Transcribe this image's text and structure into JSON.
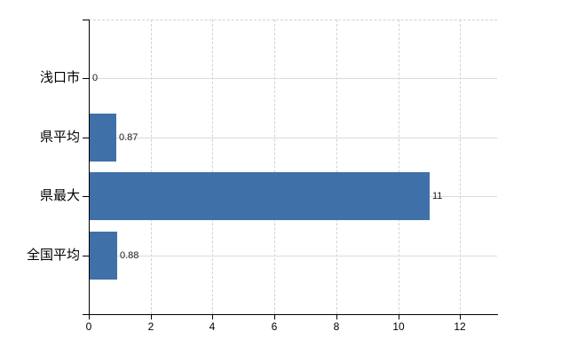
{
  "chart_data": {
    "type": "bar",
    "orientation": "horizontal",
    "title": "",
    "categories": [
      "浅口市",
      "県平均",
      "県最大",
      "全国平均"
    ],
    "values": [
      0,
      0.87,
      11,
      0.88
    ],
    "value_labels": [
      "0",
      "0.87",
      "11",
      "0.88"
    ],
    "x_ticks": [
      0,
      2,
      4,
      6,
      8,
      10,
      12
    ],
    "x_tick_labels": [
      "0",
      "2",
      "4",
      "6",
      "8",
      "10",
      "12"
    ],
    "xlim": [
      0,
      13.2
    ],
    "grid": true,
    "legend": false,
    "gridline_style": {
      "vertical": "dashed",
      "horizontal": "solid",
      "plot_top": "dashed"
    },
    "colors": {
      "bar": "#4070a8",
      "axis": "#000000",
      "grid_solid": "#d9ddd9",
      "grid_dashed": "#cfd4cf",
      "category_text": "#000000",
      "value_text": "#1a1a1a",
      "tick_text": "#000000",
      "background": "#ffffff"
    }
  }
}
